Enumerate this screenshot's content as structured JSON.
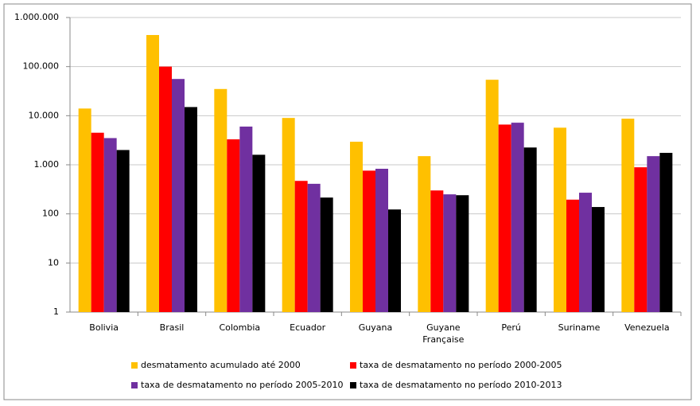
{
  "chart_data": {
    "type": "bar",
    "log_scale": true,
    "grid": true,
    "legend": "bottom",
    "categories": [
      "Bolivia",
      "Brasil",
      "Colombia",
      "Ecuador",
      "Guyana",
      "Guyane Française",
      "Perú",
      "Suriname",
      "Venezuela"
    ],
    "series": [
      {
        "name": "desmatamento acumulado até 2000",
        "color": "#ffc000",
        "values": [
          14000,
          440000,
          35000,
          9000,
          2950,
          1500,
          54000,
          5700,
          8700
        ]
      },
      {
        "name": "taxa de desmatamento no período 2000-2005",
        "color": "#ff0000",
        "values": [
          4500,
          100000,
          3300,
          470,
          760,
          300,
          6600,
          195,
          890
        ]
      },
      {
        "name": "taxa de desmatamento no período 2005-2010",
        "color": "#7030a0",
        "values": [
          3500,
          56000,
          6000,
          410,
          830,
          250,
          7200,
          270,
          1500
        ]
      },
      {
        "name": "taxa de desmatamento no período 2010-2013",
        "color": "#000000",
        "values": [
          2000,
          15000,
          1600,
          215,
          123,
          240,
          2250,
          138,
          1750
        ]
      }
    ],
    "ylim": [
      1,
      1000000
    ],
    "yticks": [
      1,
      10,
      100,
      {
        "value": 1000,
        "label": "1.000"
      },
      {
        "value": 10000,
        "label": "10.000"
      },
      {
        "value": 100000,
        "label": "100.000"
      },
      {
        "value": 1000000,
        "label": "1.000.000"
      }
    ]
  }
}
